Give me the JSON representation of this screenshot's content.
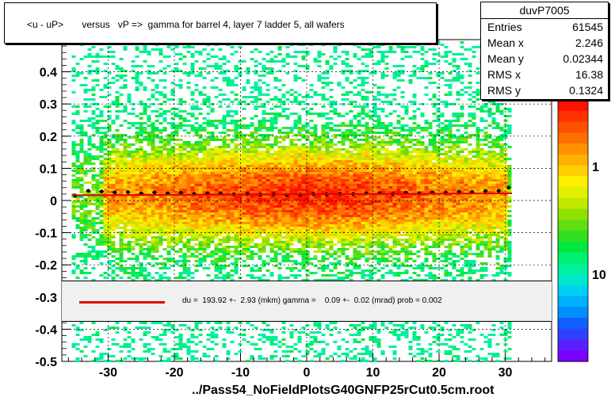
{
  "title": "<u - uP>       versus   vP =>  gamma for barrel 4, layer 7 ladder 5, all wafers",
  "stats": {
    "name": "duvP7005",
    "rows": [
      {
        "label": "Entries",
        "value": "61545"
      },
      {
        "label": "Mean x",
        "value": "2.246"
      },
      {
        "label": "Mean y",
        "value": "0.02344"
      },
      {
        "label": "RMS x",
        "value": "16.38"
      },
      {
        "label": "RMS y",
        "value": "0.1324"
      }
    ]
  },
  "fit_text": "du =  193.92 +-  2.93 (mkm) gamma =    0.09 +-  0.02 (mrad) prob = 0.002",
  "footer": "../Pass54_NoFieldPlotsG40GNFP25rCut0.5cm.root",
  "palette_labels": [
    "10",
    "1",
    "10"
  ],
  "colors": {
    "fit_line": "#e00000",
    "profile": "#000000",
    "palette": [
      "#7a00ff",
      "#5a20ff",
      "#3040ff",
      "#1060ff",
      "#0090ff",
      "#00b0ff",
      "#00d0f0",
      "#00e8c8",
      "#00f0a0",
      "#00f070",
      "#00e840",
      "#30e020",
      "#60e010",
      "#90e000",
      "#c0e800",
      "#e0f000",
      "#fff000",
      "#ffd000",
      "#ffb000",
      "#ff9000",
      "#ff7000",
      "#ff5000",
      "#ff3000",
      "#ff1000"
    ]
  },
  "chart_data": {
    "type": "heatmap",
    "title": "<u - uP>       versus   vP =>  gamma for barrel 4, layer 7 ladder 5, all wafers",
    "xlabel": "",
    "ylabel": "",
    "xlim": [
      -37,
      37
    ],
    "ylim": [
      -0.5,
      0.5
    ],
    "x_ticks": [
      -30,
      -20,
      -10,
      0,
      10,
      20,
      30
    ],
    "y_ticks": [
      -0.5,
      -0.4,
      -0.3,
      -0.2,
      -0.1,
      0,
      0.1,
      0.2,
      0.3,
      0.4
    ],
    "y_tick_labels": [
      "-0.5",
      "-0.4",
      "-0.3",
      "-0.2",
      "-0.1",
      "0",
      "0.1",
      "0.2",
      "0.3",
      "0.4"
    ],
    "grid": true,
    "fit": {
      "intercept": 0.0194,
      "slope": 9e-05
    },
    "profile": {
      "x": [
        -35,
        -33,
        -31,
        -29,
        -27,
        -25,
        -23,
        -21,
        -19,
        -17,
        -15,
        -13,
        -11,
        -9,
        -7,
        -5,
        -3,
        -1,
        1,
        3,
        5,
        7,
        9,
        11,
        13,
        15,
        17,
        19,
        21,
        23,
        25,
        27,
        29,
        30.5
      ],
      "y": [
        0.015,
        0.03,
        0.028,
        0.025,
        0.026,
        0.022,
        0.025,
        0.022,
        0.024,
        0.02,
        0.022,
        0.021,
        0.019,
        0.02,
        0.018,
        0.019,
        0.017,
        0.018,
        0.02,
        0.019,
        0.021,
        0.02,
        0.022,
        0.023,
        0.02,
        0.024,
        0.022,
        0.025,
        0.024,
        0.027,
        0.026,
        0.029,
        0.03,
        0.04
      ]
    }
  }
}
